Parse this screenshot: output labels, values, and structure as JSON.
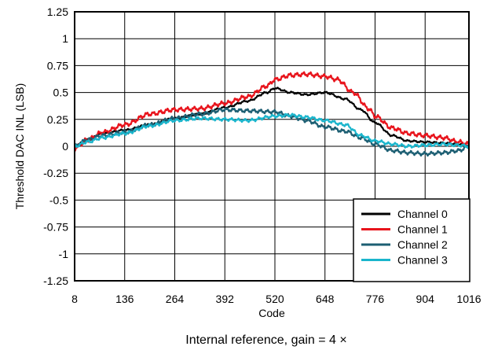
{
  "chart_data": {
    "type": "line",
    "xlabel": "Code",
    "ylabel": "Threshold DAC INL (LSB)",
    "caption": "Internal reference, gain = 4 ×",
    "xlim": [
      8,
      1016
    ],
    "ylim": [
      -1.25,
      1.25
    ],
    "x_ticks": [
      8,
      136,
      264,
      392,
      520,
      648,
      776,
      904,
      1016
    ],
    "y_ticks": [
      1.25,
      1,
      0.75,
      0.5,
      0.25,
      0,
      -0.25,
      -0.5,
      -0.75,
      -1,
      -1.25
    ],
    "grid": true,
    "legend_position": "bottom-right",
    "series": [
      {
        "name": "Channel 0",
        "color": "#000000",
        "x": [
          8,
          40,
          80,
          136,
          200,
          264,
          330,
          392,
          450,
          500,
          520,
          560,
          600,
          648,
          700,
          740,
          776,
          820,
          860,
          904,
          950,
          990,
          1016
        ],
        "y": [
          0.0,
          0.06,
          0.12,
          0.15,
          0.2,
          0.26,
          0.3,
          0.36,
          0.42,
          0.5,
          0.54,
          0.5,
          0.48,
          0.5,
          0.44,
          0.34,
          0.22,
          0.1,
          0.05,
          0.04,
          0.03,
          0.02,
          0.0
        ]
      },
      {
        "name": "Channel 1",
        "color": "#e8141c",
        "x": [
          8,
          40,
          80,
          136,
          200,
          264,
          330,
          392,
          450,
          500,
          520,
          560,
          600,
          648,
          680,
          720,
          760,
          776,
          820,
          860,
          904,
          950,
          990,
          1016
        ],
        "y": [
          -0.02,
          0.06,
          0.13,
          0.2,
          0.3,
          0.34,
          0.35,
          0.4,
          0.46,
          0.56,
          0.62,
          0.66,
          0.67,
          0.65,
          0.62,
          0.5,
          0.35,
          0.28,
          0.17,
          0.12,
          0.1,
          0.08,
          0.04,
          0.02
        ]
      },
      {
        "name": "Channel 2",
        "color": "#1d5f73",
        "x": [
          8,
          40,
          80,
          136,
          200,
          264,
          330,
          392,
          450,
          520,
          560,
          600,
          648,
          700,
          740,
          776,
          820,
          860,
          904,
          950,
          990,
          1016
        ],
        "y": [
          0.0,
          0.06,
          0.1,
          0.13,
          0.2,
          0.26,
          0.3,
          0.34,
          0.33,
          0.32,
          0.28,
          0.24,
          0.18,
          0.14,
          0.08,
          0.02,
          -0.04,
          -0.06,
          -0.07,
          -0.06,
          -0.04,
          0.0
        ]
      },
      {
        "name": "Channel 3",
        "color": "#1ab5cc",
        "x": [
          8,
          40,
          80,
          136,
          200,
          264,
          330,
          392,
          450,
          520,
          560,
          600,
          648,
          700,
          740,
          776,
          820,
          860,
          904,
          950,
          990,
          1016
        ],
        "y": [
          0.0,
          0.04,
          0.08,
          0.12,
          0.19,
          0.24,
          0.26,
          0.25,
          0.24,
          0.28,
          0.29,
          0.27,
          0.24,
          0.2,
          0.1,
          0.05,
          0.02,
          0.0,
          0.01,
          0.02,
          0.01,
          0.0
        ]
      }
    ]
  }
}
